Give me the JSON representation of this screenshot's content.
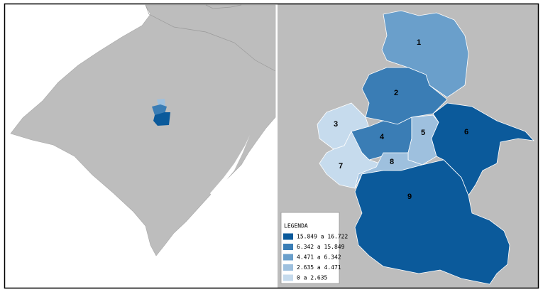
{
  "map": {
    "regions": [
      {
        "label": "1",
        "color": "#6a9fcb"
      },
      {
        "label": "2",
        "color": "#3a7db5"
      },
      {
        "label": "3",
        "color": "#c6dbed"
      },
      {
        "label": "4",
        "color": "#3a7db5"
      },
      {
        "label": "5",
        "color": "#9ec0de"
      },
      {
        "label": "6",
        "color": "#0b5a9b"
      },
      {
        "label": "7",
        "color": "#c6dbed"
      },
      {
        "label": "8",
        "color": "#9ec0de"
      },
      {
        "label": "9",
        "color": "#0b5a9b"
      }
    ],
    "legend": {
      "title": "LEGENDA",
      "items": [
        {
          "label": "15.849 a 16.722",
          "color": "#0b5a9b"
        },
        {
          "label": "6.342 a 15.849",
          "color": "#3a7db5"
        },
        {
          "label": "4.471 a 6.342",
          "color": "#6a9fcb"
        },
        {
          "label": "2.635 a 4.471",
          "color": "#9ec0de"
        },
        {
          "label": "0 a 2.635",
          "color": "#c6dbed"
        }
      ]
    }
  }
}
